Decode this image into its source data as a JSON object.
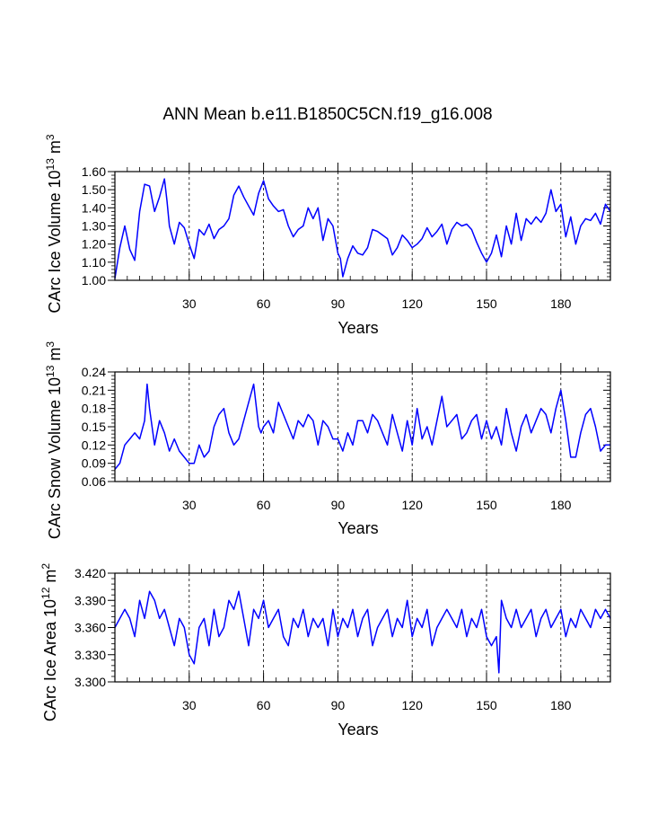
{
  "title": "ANN Mean b.e11.B1850C5CN.f19_g16.008",
  "chart_data": [
    {
      "type": "line",
      "id": "ice-volume",
      "xlabel": "Years",
      "ylabel": "CArc Ice Volume 10",
      "ylabel_exp": "13",
      "ylabel_unit": " m",
      "ylabel_unit_exp": "3",
      "xlim": [
        0,
        200
      ],
      "ylim": [
        1.0,
        1.6
      ],
      "xticks": [
        "30",
        "60",
        "90",
        "120",
        "150",
        "180"
      ],
      "yticks": [
        "1.00",
        "1.10",
        "1.20",
        "1.30",
        "1.40",
        "1.50",
        "1.60"
      ],
      "grid": "dashed vertical at x ticks",
      "line_color": "#0000ff",
      "series": [
        {
          "name": "CArc Ice Volume",
          "x": [
            0,
            2,
            4,
            6,
            8,
            10,
            12,
            14,
            16,
            18,
            20,
            21,
            22,
            24,
            26,
            28,
            30,
            32,
            34,
            36,
            38,
            40,
            42,
            44,
            46,
            48,
            50,
            52,
            54,
            56,
            58,
            60,
            62,
            64,
            66,
            68,
            70,
            72,
            74,
            76,
            78,
            80,
            82,
            84,
            86,
            88,
            90,
            91,
            92,
            94,
            96,
            98,
            100,
            102,
            104,
            106,
            108,
            110,
            112,
            114,
            116,
            118,
            120,
            122,
            124,
            126,
            128,
            130,
            132,
            134,
            136,
            138,
            140,
            142,
            144,
            146,
            148,
            150,
            152,
            154,
            156,
            158,
            160,
            162,
            164,
            166,
            168,
            170,
            172,
            174,
            176,
            178,
            180,
            182,
            184,
            186,
            188,
            190,
            192,
            194,
            196,
            198,
            200
          ],
          "y": [
            1.01,
            1.18,
            1.3,
            1.17,
            1.11,
            1.38,
            1.53,
            1.52,
            1.38,
            1.46,
            1.56,
            1.44,
            1.3,
            1.2,
            1.32,
            1.29,
            1.2,
            1.12,
            1.28,
            1.25,
            1.31,
            1.23,
            1.28,
            1.3,
            1.34,
            1.47,
            1.52,
            1.46,
            1.41,
            1.36,
            1.48,
            1.55,
            1.45,
            1.41,
            1.38,
            1.39,
            1.3,
            1.24,
            1.28,
            1.3,
            1.4,
            1.34,
            1.4,
            1.22,
            1.34,
            1.3,
            1.15,
            1.12,
            1.02,
            1.12,
            1.19,
            1.15,
            1.14,
            1.18,
            1.28,
            1.27,
            1.25,
            1.23,
            1.14,
            1.18,
            1.25,
            1.22,
            1.18,
            1.2,
            1.23,
            1.29,
            1.24,
            1.27,
            1.31,
            1.2,
            1.28,
            1.32,
            1.3,
            1.31,
            1.28,
            1.21,
            1.15,
            1.1,
            1.15,
            1.25,
            1.13,
            1.3,
            1.2,
            1.37,
            1.22,
            1.34,
            1.31,
            1.35,
            1.32,
            1.37,
            1.5,
            1.38,
            1.42,
            1.24,
            1.35,
            1.2,
            1.3,
            1.34,
            1.33,
            1.37,
            1.31,
            1.42,
            1.38
          ]
        }
      ]
    },
    {
      "type": "line",
      "id": "snow-volume",
      "xlabel": "Years",
      "ylabel": "CArc Snow Volume 10",
      "ylabel_exp": "13",
      "ylabel_unit": " m",
      "ylabel_unit_exp": "3",
      "xlim": [
        0,
        200
      ],
      "ylim": [
        0.06,
        0.24
      ],
      "xticks": [
        "30",
        "60",
        "90",
        "120",
        "150",
        "180"
      ],
      "yticks": [
        "0.06",
        "0.09",
        "0.12",
        "0.15",
        "0.18",
        "0.21",
        "0.24"
      ],
      "grid": "dashed vertical at x ticks",
      "line_color": "#0000ff",
      "series": [
        {
          "name": "CArc Snow Volume",
          "x": [
            0,
            2,
            4,
            6,
            8,
            10,
            12,
            13,
            14,
            16,
            18,
            20,
            22,
            24,
            26,
            28,
            30,
            32,
            34,
            36,
            38,
            40,
            42,
            44,
            46,
            48,
            50,
            52,
            54,
            56,
            58,
            59,
            60,
            62,
            64,
            66,
            68,
            70,
            72,
            74,
            76,
            78,
            80,
            82,
            84,
            86,
            88,
            90,
            92,
            94,
            96,
            98,
            100,
            102,
            104,
            106,
            108,
            110,
            112,
            114,
            116,
            118,
            120,
            122,
            124,
            126,
            128,
            130,
            132,
            134,
            136,
            138,
            140,
            142,
            144,
            146,
            148,
            150,
            152,
            154,
            156,
            158,
            160,
            162,
            164,
            166,
            168,
            170,
            172,
            174,
            176,
            178,
            180,
            182,
            184,
            186,
            188,
            190,
            192,
            194,
            196,
            198,
            200
          ],
          "y": [
            0.08,
            0.09,
            0.12,
            0.13,
            0.14,
            0.13,
            0.16,
            0.22,
            0.18,
            0.12,
            0.16,
            0.14,
            0.11,
            0.13,
            0.11,
            0.1,
            0.09,
            0.09,
            0.12,
            0.1,
            0.11,
            0.15,
            0.17,
            0.18,
            0.14,
            0.12,
            0.13,
            0.16,
            0.19,
            0.22,
            0.15,
            0.14,
            0.15,
            0.16,
            0.14,
            0.19,
            0.17,
            0.15,
            0.13,
            0.16,
            0.15,
            0.17,
            0.16,
            0.12,
            0.16,
            0.15,
            0.13,
            0.13,
            0.11,
            0.14,
            0.12,
            0.16,
            0.16,
            0.14,
            0.17,
            0.16,
            0.14,
            0.12,
            0.17,
            0.14,
            0.11,
            0.16,
            0.12,
            0.18,
            0.13,
            0.15,
            0.12,
            0.16,
            0.2,
            0.15,
            0.16,
            0.17,
            0.13,
            0.14,
            0.16,
            0.17,
            0.13,
            0.16,
            0.13,
            0.15,
            0.12,
            0.18,
            0.14,
            0.11,
            0.15,
            0.17,
            0.14,
            0.16,
            0.18,
            0.17,
            0.14,
            0.18,
            0.21,
            0.16,
            0.1,
            0.1,
            0.14,
            0.17,
            0.18,
            0.15,
            0.11,
            0.12,
            0.12
          ]
        }
      ]
    },
    {
      "type": "line",
      "id": "ice-area",
      "xlabel": "Years",
      "ylabel": "CArc Ice Area 10",
      "ylabel_exp": "12",
      "ylabel_unit": " m",
      "ylabel_unit_exp": "2",
      "xlim": [
        0,
        200
      ],
      "ylim": [
        3.3,
        3.42
      ],
      "xticks": [
        "30",
        "60",
        "90",
        "120",
        "150",
        "180"
      ],
      "yticks": [
        "3.300",
        "3.330",
        "3.360",
        "3.390",
        "3.420"
      ],
      "grid": "dashed vertical at x ticks",
      "line_color": "#0000ff",
      "series": [
        {
          "name": "CArc Ice Area",
          "x": [
            0,
            2,
            4,
            6,
            8,
            10,
            12,
            14,
            16,
            18,
            20,
            22,
            24,
            26,
            28,
            30,
            32,
            34,
            36,
            38,
            40,
            42,
            44,
            46,
            48,
            50,
            52,
            54,
            56,
            58,
            60,
            62,
            64,
            66,
            68,
            70,
            72,
            74,
            76,
            78,
            80,
            82,
            84,
            86,
            88,
            90,
            92,
            94,
            96,
            98,
            100,
            102,
            104,
            106,
            108,
            110,
            112,
            114,
            116,
            118,
            120,
            122,
            124,
            126,
            128,
            130,
            132,
            134,
            136,
            138,
            140,
            142,
            144,
            146,
            148,
            150,
            152,
            154,
            155,
            156,
            158,
            160,
            162,
            164,
            166,
            168,
            170,
            172,
            174,
            176,
            178,
            180,
            182,
            184,
            186,
            188,
            190,
            192,
            194,
            196,
            198,
            200
          ],
          "y": [
            3.36,
            3.37,
            3.38,
            3.37,
            3.35,
            3.39,
            3.37,
            3.4,
            3.39,
            3.37,
            3.38,
            3.36,
            3.34,
            3.37,
            3.36,
            3.33,
            3.32,
            3.36,
            3.37,
            3.34,
            3.38,
            3.35,
            3.36,
            3.39,
            3.38,
            3.4,
            3.37,
            3.34,
            3.38,
            3.37,
            3.39,
            3.36,
            3.37,
            3.38,
            3.35,
            3.34,
            3.37,
            3.36,
            3.38,
            3.35,
            3.37,
            3.36,
            3.37,
            3.34,
            3.38,
            3.35,
            3.37,
            3.36,
            3.38,
            3.35,
            3.37,
            3.38,
            3.34,
            3.36,
            3.37,
            3.38,
            3.35,
            3.37,
            3.36,
            3.39,
            3.35,
            3.37,
            3.36,
            3.38,
            3.34,
            3.36,
            3.37,
            3.38,
            3.37,
            3.36,
            3.38,
            3.35,
            3.37,
            3.36,
            3.38,
            3.35,
            3.34,
            3.35,
            3.31,
            3.39,
            3.37,
            3.36,
            3.38,
            3.36,
            3.37,
            3.38,
            3.35,
            3.37,
            3.38,
            3.36,
            3.37,
            3.38,
            3.35,
            3.37,
            3.36,
            3.38,
            3.37,
            3.36,
            3.38,
            3.37,
            3.38,
            3.37
          ]
        }
      ]
    }
  ]
}
